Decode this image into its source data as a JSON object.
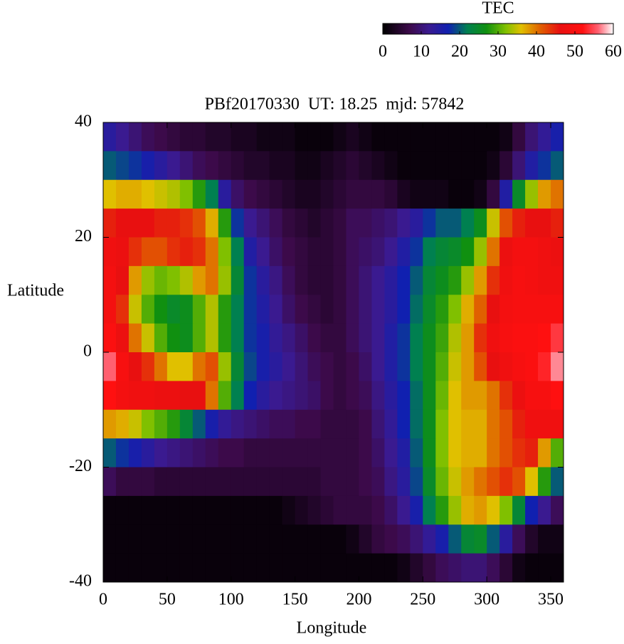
{
  "chart_data": {
    "type": "heatmap",
    "title": "PBf20170330  UT: 18.25  mjd: 57842",
    "xlabel": "Longitude",
    "ylabel": "Latitude",
    "colorbar_label": "TEC",
    "xlim": [
      0,
      360
    ],
    "xticks": [
      0,
      50,
      100,
      150,
      200,
      250,
      300,
      350
    ],
    "ylim": [
      -40,
      40
    ],
    "yticks": [
      -40,
      -20,
      0,
      20,
      40
    ],
    "zlim": [
      0,
      60
    ],
    "zticks": [
      0,
      10,
      20,
      30,
      40,
      50,
      60
    ],
    "colorscale": [
      [
        0,
        "#000000"
      ],
      [
        7,
        "#3c0a4a"
      ],
      [
        12,
        "#3a1a90"
      ],
      [
        17,
        "#1020b0"
      ],
      [
        22,
        "#008050"
      ],
      [
        27,
        "#109010"
      ],
      [
        32,
        "#80c000"
      ],
      [
        36,
        "#e0c000"
      ],
      [
        41,
        "#e06000"
      ],
      [
        46,
        "#e81010"
      ],
      [
        52,
        "#ff1010"
      ],
      [
        56,
        "#ff6070"
      ],
      [
        60,
        "#ffffff"
      ]
    ],
    "x": [
      0,
      10,
      20,
      30,
      40,
      50,
      60,
      70,
      80,
      90,
      100,
      110,
      120,
      130,
      140,
      150,
      160,
      170,
      180,
      190,
      200,
      210,
      220,
      230,
      240,
      250,
      260,
      270,
      280,
      290,
      300,
      310,
      320,
      330,
      340,
      350
    ],
    "y": [
      37.5,
      32.5,
      27.5,
      22.5,
      17.5,
      12.5,
      7.5,
      2.5,
      -2.5,
      -7.5,
      -12.5,
      -17.5,
      -22.5,
      -27.5,
      -32.5,
      -37.5
    ],
    "z": [
      [
        14,
        12,
        10,
        8,
        7,
        6,
        5,
        5,
        4,
        4,
        3,
        3,
        2,
        2,
        2,
        1,
        1,
        1,
        2,
        3,
        2,
        1,
        1,
        1,
        1,
        1,
        1,
        1,
        1,
        1,
        1,
        2,
        6,
        10,
        13,
        16
      ],
      [
        20,
        19,
        18,
        16,
        14,
        12,
        10,
        8,
        7,
        6,
        5,
        4,
        4,
        3,
        3,
        2,
        2,
        3,
        4,
        5,
        4,
        3,
        2,
        1,
        1,
        1,
        1,
        1,
        1,
        1,
        2,
        5,
        10,
        15,
        18,
        20
      ],
      [
        36,
        37,
        37,
        36,
        35,
        34,
        32,
        28,
        22,
        14,
        9,
        7,
        6,
        5,
        4,
        3,
        3,
        4,
        5,
        6,
        6,
        6,
        5,
        3,
        2,
        2,
        2,
        1,
        1,
        2,
        6,
        15,
        25,
        33,
        38,
        40
      ],
      [
        45,
        46,
        46,
        46,
        45,
        45,
        44,
        42,
        37,
        28,
        18,
        12,
        10,
        8,
        6,
        5,
        4,
        5,
        6,
        8,
        8,
        9,
        10,
        12,
        14,
        18,
        20,
        20,
        22,
        26,
        35,
        42,
        45,
        46,
        46,
        45
      ],
      [
        48,
        47,
        44,
        42,
        42,
        44,
        45,
        44,
        40,
        32,
        22,
        15,
        12,
        9,
        7,
        6,
        5,
        5,
        6,
        8,
        9,
        10,
        12,
        15,
        18,
        22,
        24,
        25,
        27,
        33,
        40,
        47,
        49,
        49,
        48,
        47
      ],
      [
        49,
        46,
        38,
        33,
        31,
        32,
        34,
        38,
        40,
        33,
        24,
        18,
        14,
        11,
        8,
        6,
        5,
        5,
        6,
        8,
        10,
        12,
        14,
        17,
        20,
        24,
        26,
        28,
        33,
        38,
        44,
        48,
        50,
        49,
        48,
        48
      ],
      [
        49,
        44,
        35,
        30,
        27,
        25,
        26,
        30,
        34,
        28,
        22,
        18,
        15,
        12,
        9,
        7,
        6,
        5,
        6,
        8,
        10,
        12,
        14,
        17,
        21,
        25,
        28,
        32,
        37,
        41,
        46,
        49,
        50,
        50,
        50,
        50
      ],
      [
        51,
        47,
        40,
        35,
        30,
        27,
        26,
        30,
        34,
        28,
        22,
        18,
        16,
        13,
        11,
        9,
        7,
        6,
        6,
        8,
        10,
        12,
        15,
        18,
        22,
        26,
        29,
        34,
        38,
        44,
        48,
        50,
        51,
        51,
        52,
        54
      ],
      [
        56,
        50,
        46,
        44,
        40,
        36,
        36,
        40,
        42,
        33,
        24,
        19,
        16,
        14,
        12,
        10,
        8,
        7,
        6,
        7,
        9,
        12,
        15,
        18,
        22,
        26,
        30,
        35,
        38,
        42,
        46,
        48,
        50,
        51,
        53,
        57
      ],
      [
        52,
        49,
        48,
        48,
        47,
        47,
        46,
        46,
        40,
        30,
        22,
        17,
        14,
        12,
        11,
        10,
        9,
        7,
        6,
        7,
        8,
        11,
        14,
        17,
        21,
        26,
        31,
        36,
        38,
        38,
        40,
        44,
        47,
        50,
        50,
        52
      ],
      [
        38,
        37,
        35,
        32,
        30,
        28,
        24,
        20,
        16,
        13,
        11,
        10,
        9,
        8,
        8,
        7,
        7,
        6,
        6,
        6,
        7,
        10,
        13,
        17,
        21,
        26,
        32,
        36,
        37,
        37,
        40,
        42,
        45,
        48,
        48,
        48
      ],
      [
        20,
        18,
        16,
        14,
        12,
        11,
        10,
        9,
        8,
        7,
        7,
        6,
        6,
        6,
        6,
        6,
        6,
        6,
        6,
        6,
        7,
        9,
        12,
        15,
        20,
        26,
        32,
        36,
        37,
        37,
        40,
        42,
        44,
        45,
        38,
        30
      ],
      [
        8,
        6,
        6,
        6,
        5,
        5,
        5,
        5,
        5,
        5,
        5,
        5,
        5,
        5,
        5,
        5,
        5,
        6,
        6,
        6,
        7,
        8,
        11,
        14,
        19,
        25,
        31,
        35,
        38,
        40,
        42,
        44,
        42,
        36,
        28,
        20
      ],
      [
        1,
        1,
        1,
        1,
        1,
        1,
        1,
        1,
        1,
        1,
        1,
        1,
        1,
        1,
        2,
        3,
        4,
        5,
        6,
        6,
        6,
        7,
        9,
        12,
        16,
        22,
        28,
        33,
        37,
        38,
        36,
        32,
        24,
        17,
        12,
        8
      ],
      [
        1,
        1,
        1,
        1,
        1,
        1,
        1,
        1,
        1,
        1,
        1,
        1,
        1,
        1,
        1,
        1,
        1,
        1,
        1,
        2,
        4,
        6,
        7,
        8,
        10,
        13,
        16,
        20,
        24,
        25,
        20,
        14,
        8,
        4,
        2,
        2
      ],
      [
        1,
        1,
        1,
        1,
        1,
        1,
        1,
        1,
        1,
        1,
        1,
        1,
        1,
        1,
        1,
        1,
        1,
        1,
        1,
        1,
        1,
        1,
        1,
        2,
        4,
        6,
        8,
        9,
        10,
        10,
        8,
        5,
        2,
        1,
        1,
        1
      ]
    ]
  }
}
